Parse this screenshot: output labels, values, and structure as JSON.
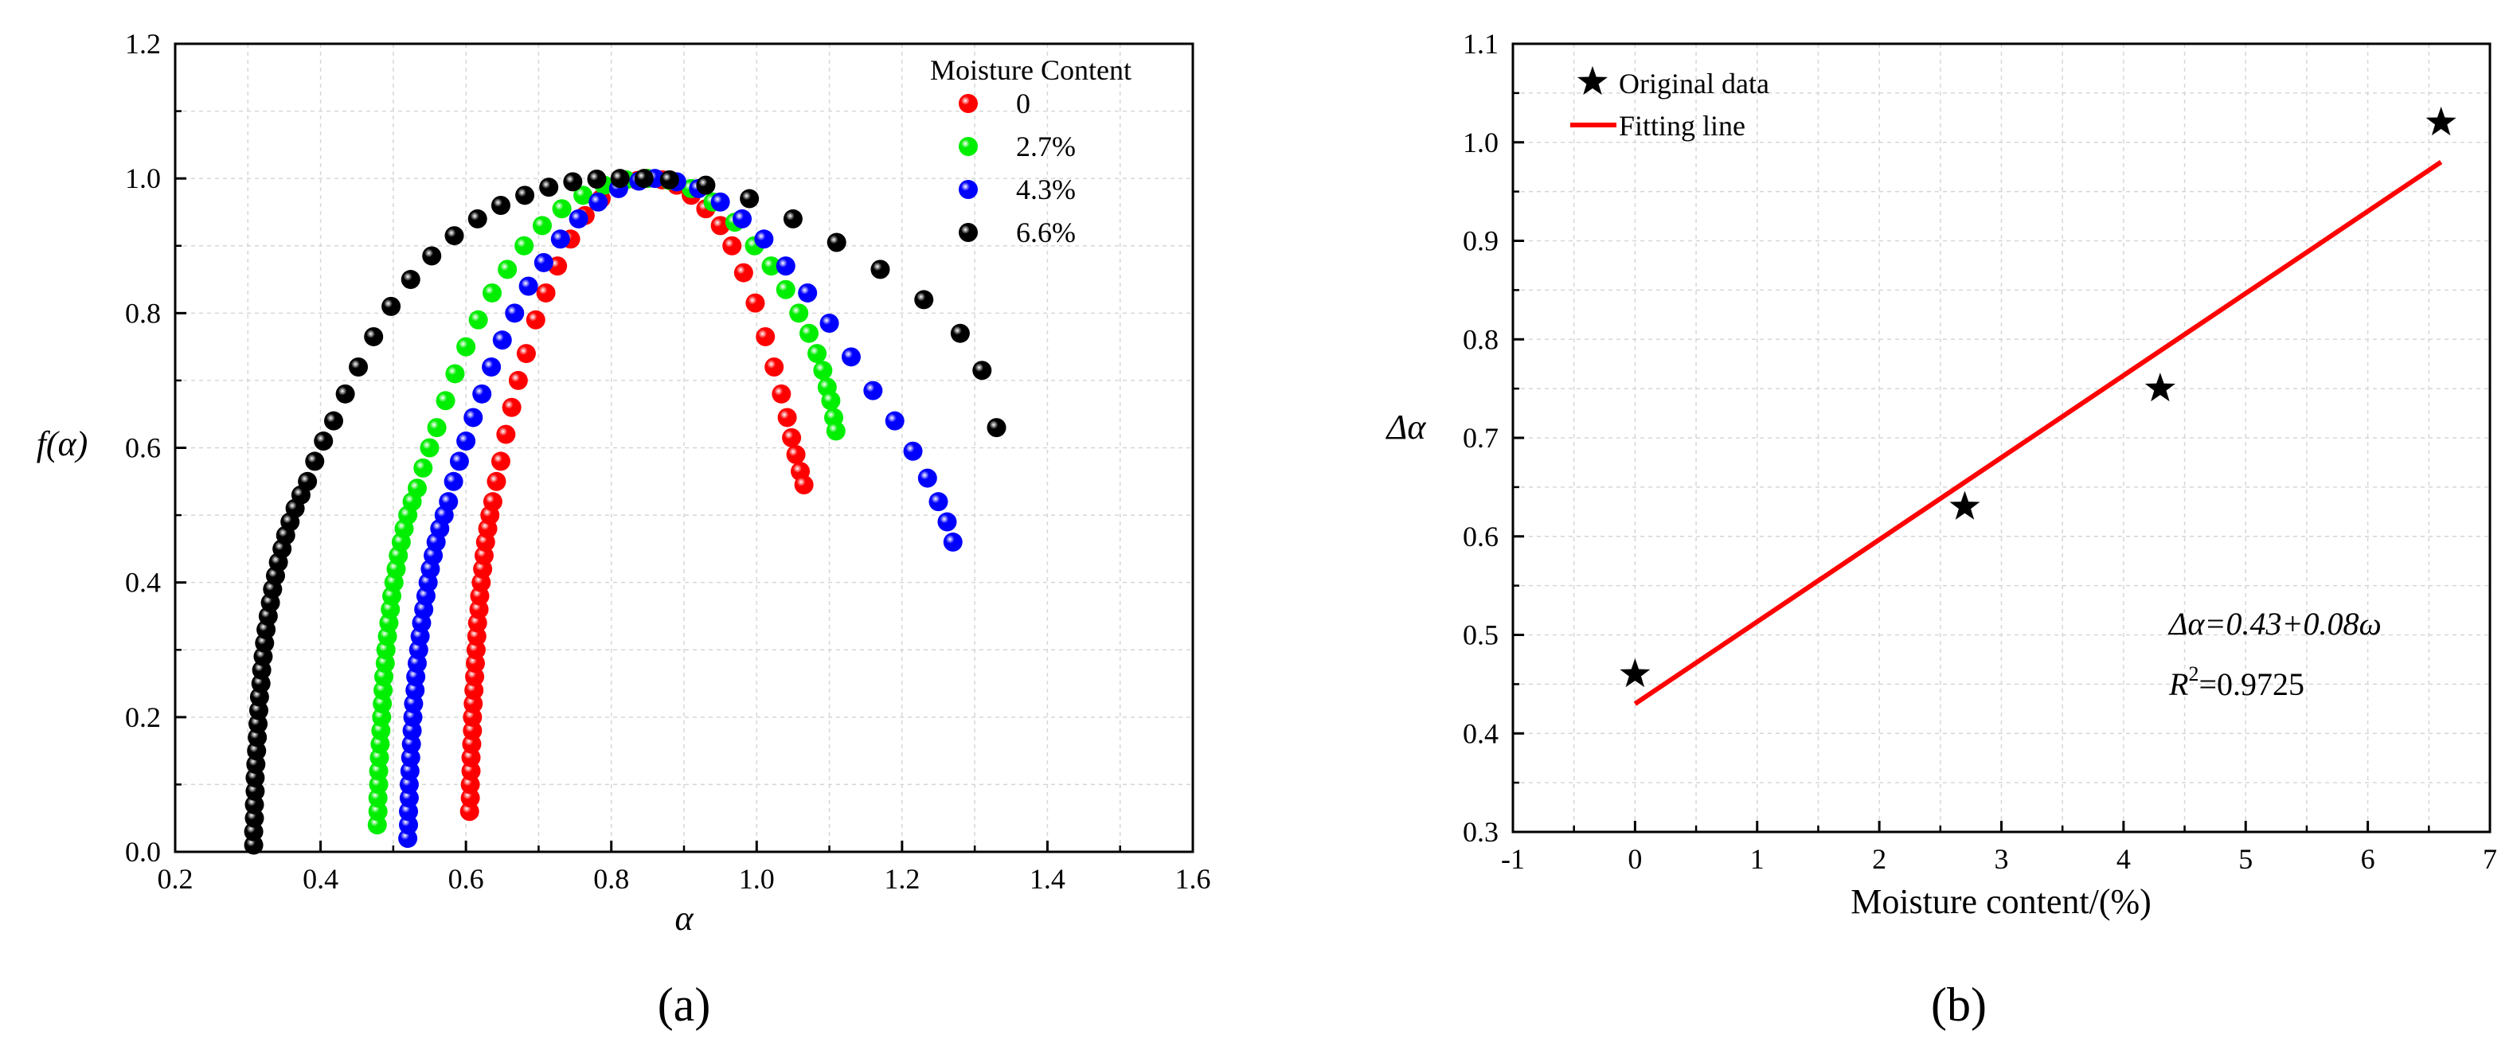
{
  "chart_data": [
    {
      "type": "scatter",
      "panel_label": "(a)",
      "title": "",
      "xlabel": "α",
      "ylabel": "f(α)",
      "xlim": [
        0.2,
        1.6
      ],
      "ylim": [
        0.0,
        1.2
      ],
      "xticks": [
        "0.2",
        "0.4",
        "0.6",
        "0.8",
        "1.0",
        "1.2",
        "1.4",
        "1.6"
      ],
      "yticks": [
        "0.0",
        "0.2",
        "0.4",
        "0.6",
        "0.8",
        "1.0",
        "1.2"
      ],
      "grid": true,
      "legend": {
        "title": "Moisture Content",
        "position": "top-right"
      },
      "series": [
        {
          "name": "0",
          "color": "#ff0000",
          "left_x": [
            0.605,
            0.606,
            0.606,
            0.607,
            0.607,
            0.608,
            0.609,
            0.609,
            0.61,
            0.611,
            0.612,
            0.613,
            0.614,
            0.615,
            0.616,
            0.618,
            0.619,
            0.621,
            0.623,
            0.625,
            0.627,
            0.63,
            0.633,
            0.637,
            0.642,
            0.648,
            0.655,
            0.663,
            0.672,
            0.683,
            0.696,
            0.71,
            0.726,
            0.744,
            0.764,
            0.786,
            0.81,
            0.836,
            0.85
          ],
          "left_y": [
            0.06,
            0.08,
            0.1,
            0.12,
            0.14,
            0.16,
            0.18,
            0.2,
            0.22,
            0.24,
            0.26,
            0.28,
            0.3,
            0.32,
            0.34,
            0.36,
            0.38,
            0.4,
            0.42,
            0.44,
            0.46,
            0.48,
            0.5,
            0.52,
            0.55,
            0.58,
            0.62,
            0.66,
            0.7,
            0.74,
            0.79,
            0.83,
            0.87,
            0.91,
            0.945,
            0.97,
            0.987,
            0.997,
            1.0
          ],
          "right_x": [
            0.87,
            0.89,
            0.91,
            0.93,
            0.95,
            0.966,
            0.982,
            0.998,
            1.012,
            1.024,
            1.034,
            1.042,
            1.048,
            1.054,
            1.06,
            1.065
          ],
          "right_y": [
            0.998,
            0.99,
            0.975,
            0.955,
            0.93,
            0.9,
            0.86,
            0.815,
            0.765,
            0.72,
            0.68,
            0.645,
            0.615,
            0.59,
            0.565,
            0.545
          ]
        },
        {
          "name": "2.7%",
          "color": "#00ee00",
          "left_x": [
            0.478,
            0.479,
            0.479,
            0.48,
            0.48,
            0.481,
            0.482,
            0.483,
            0.484,
            0.485,
            0.486,
            0.487,
            0.489,
            0.49,
            0.492,
            0.494,
            0.496,
            0.498,
            0.501,
            0.504,
            0.507,
            0.511,
            0.515,
            0.52,
            0.526,
            0.533,
            0.541,
            0.55,
            0.56,
            0.572,
            0.585,
            0.6,
            0.617,
            0.636,
            0.657,
            0.68,
            0.705,
            0.732,
            0.761,
            0.79,
            0.82,
            0.85
          ],
          "left_y": [
            0.04,
            0.06,
            0.08,
            0.1,
            0.12,
            0.14,
            0.16,
            0.18,
            0.2,
            0.22,
            0.24,
            0.26,
            0.28,
            0.3,
            0.32,
            0.34,
            0.36,
            0.38,
            0.4,
            0.42,
            0.44,
            0.46,
            0.48,
            0.5,
            0.52,
            0.54,
            0.57,
            0.6,
            0.63,
            0.67,
            0.71,
            0.75,
            0.79,
            0.83,
            0.865,
            0.9,
            0.93,
            0.955,
            0.975,
            0.99,
            0.998,
            1.0
          ],
          "right_x": [
            0.88,
            0.91,
            0.94,
            0.97,
            0.997,
            1.02,
            1.04,
            1.058,
            1.072,
            1.083,
            1.091,
            1.097,
            1.102,
            1.106,
            1.109
          ],
          "right_y": [
            0.997,
            0.985,
            0.965,
            0.935,
            0.9,
            0.87,
            0.835,
            0.8,
            0.77,
            0.74,
            0.715,
            0.69,
            0.67,
            0.645,
            0.625
          ]
        },
        {
          "name": "4.3%",
          "color": "#0000ff",
          "left_x": [
            0.52,
            0.521,
            0.521,
            0.522,
            0.522,
            0.523,
            0.524,
            0.525,
            0.526,
            0.527,
            0.528,
            0.53,
            0.531,
            0.533,
            0.535,
            0.537,
            0.539,
            0.542,
            0.545,
            0.548,
            0.551,
            0.555,
            0.559,
            0.564,
            0.57,
            0.576,
            0.583,
            0.591,
            0.6,
            0.61,
            0.622,
            0.635,
            0.65,
            0.667,
            0.686,
            0.707,
            0.73,
            0.755,
            0.782,
            0.81,
            0.838,
            0.86
          ],
          "left_y": [
            0.02,
            0.04,
            0.06,
            0.08,
            0.1,
            0.12,
            0.14,
            0.16,
            0.18,
            0.2,
            0.22,
            0.24,
            0.26,
            0.28,
            0.3,
            0.32,
            0.34,
            0.36,
            0.38,
            0.4,
            0.42,
            0.44,
            0.46,
            0.48,
            0.5,
            0.52,
            0.55,
            0.58,
            0.61,
            0.645,
            0.68,
            0.72,
            0.76,
            0.8,
            0.84,
            0.875,
            0.91,
            0.94,
            0.965,
            0.985,
            0.996,
            1.0
          ],
          "right_x": [
            0.89,
            0.92,
            0.95,
            0.98,
            1.01,
            1.04,
            1.07,
            1.1,
            1.13,
            1.16,
            1.19,
            1.215,
            1.235,
            1.25,
            1.262,
            1.27
          ],
          "right_y": [
            0.995,
            0.985,
            0.965,
            0.94,
            0.91,
            0.87,
            0.83,
            0.785,
            0.735,
            0.685,
            0.64,
            0.595,
            0.555,
            0.52,
            0.49,
            0.46
          ]
        },
        {
          "name": "6.6%",
          "color": "#000000",
          "left_x": [
            0.308,
            0.308,
            0.309,
            0.309,
            0.31,
            0.31,
            0.311,
            0.312,
            0.313,
            0.314,
            0.315,
            0.316,
            0.318,
            0.319,
            0.321,
            0.323,
            0.325,
            0.328,
            0.331,
            0.334,
            0.338,
            0.342,
            0.347,
            0.352,
            0.358,
            0.365,
            0.373,
            0.382,
            0.392,
            0.404,
            0.418,
            0.434,
            0.452,
            0.473,
            0.497,
            0.524,
            0.553,
            0.584,
            0.616,
            0.648,
            0.681,
            0.714,
            0.747,
            0.78,
            0.812,
            0.845
          ],
          "left_y": [
            0.01,
            0.03,
            0.05,
            0.07,
            0.09,
            0.11,
            0.13,
            0.15,
            0.17,
            0.19,
            0.21,
            0.23,
            0.25,
            0.27,
            0.29,
            0.31,
            0.33,
            0.35,
            0.37,
            0.39,
            0.41,
            0.43,
            0.45,
            0.47,
            0.49,
            0.51,
            0.53,
            0.55,
            0.58,
            0.61,
            0.64,
            0.68,
            0.72,
            0.765,
            0.81,
            0.85,
            0.885,
            0.915,
            0.94,
            0.96,
            0.975,
            0.987,
            0.995,
            0.999,
            1.0,
            1.0
          ],
          "right_x": [
            0.88,
            0.93,
            0.99,
            1.05,
            1.11,
            1.17,
            1.23,
            1.28,
            1.31,
            1.33
          ],
          "right_y": [
            0.998,
            0.99,
            0.97,
            0.94,
            0.905,
            0.865,
            0.82,
            0.77,
            0.715,
            0.63
          ]
        }
      ]
    },
    {
      "type": "scatter",
      "panel_label": "(b)",
      "title": "",
      "xlabel": "Moisture content/(%)",
      "ylabel": "Δα",
      "xlim": [
        -1,
        7
      ],
      "ylim": [
        0.3,
        1.1
      ],
      "xticks": [
        "-1",
        "0",
        "1",
        "2",
        "3",
        "4",
        "5",
        "6",
        "7"
      ],
      "yticks": [
        "0.3",
        "0.4",
        "0.5",
        "0.6",
        "0.7",
        "0.8",
        "0.9",
        "1.0",
        "1.1"
      ],
      "grid": true,
      "legend": {
        "position": "top-left"
      },
      "series": [
        {
          "name": "Original data",
          "marker": "star",
          "color": "#000000",
          "x": [
            0,
            2.7,
            4.3,
            6.6
          ],
          "y": [
            0.46,
            0.63,
            0.75,
            1.02
          ]
        },
        {
          "name": "Fitting line",
          "type": "line",
          "color": "#ff0000",
          "x": [
            0,
            6.6
          ],
          "y": [
            0.43,
            0.98
          ]
        }
      ],
      "annotation": {
        "equation": "Δα=0.43+0.08ω",
        "r2_prefix": "R",
        "r2_sup": "2",
        "r2_value": "=0.9725"
      }
    }
  ]
}
